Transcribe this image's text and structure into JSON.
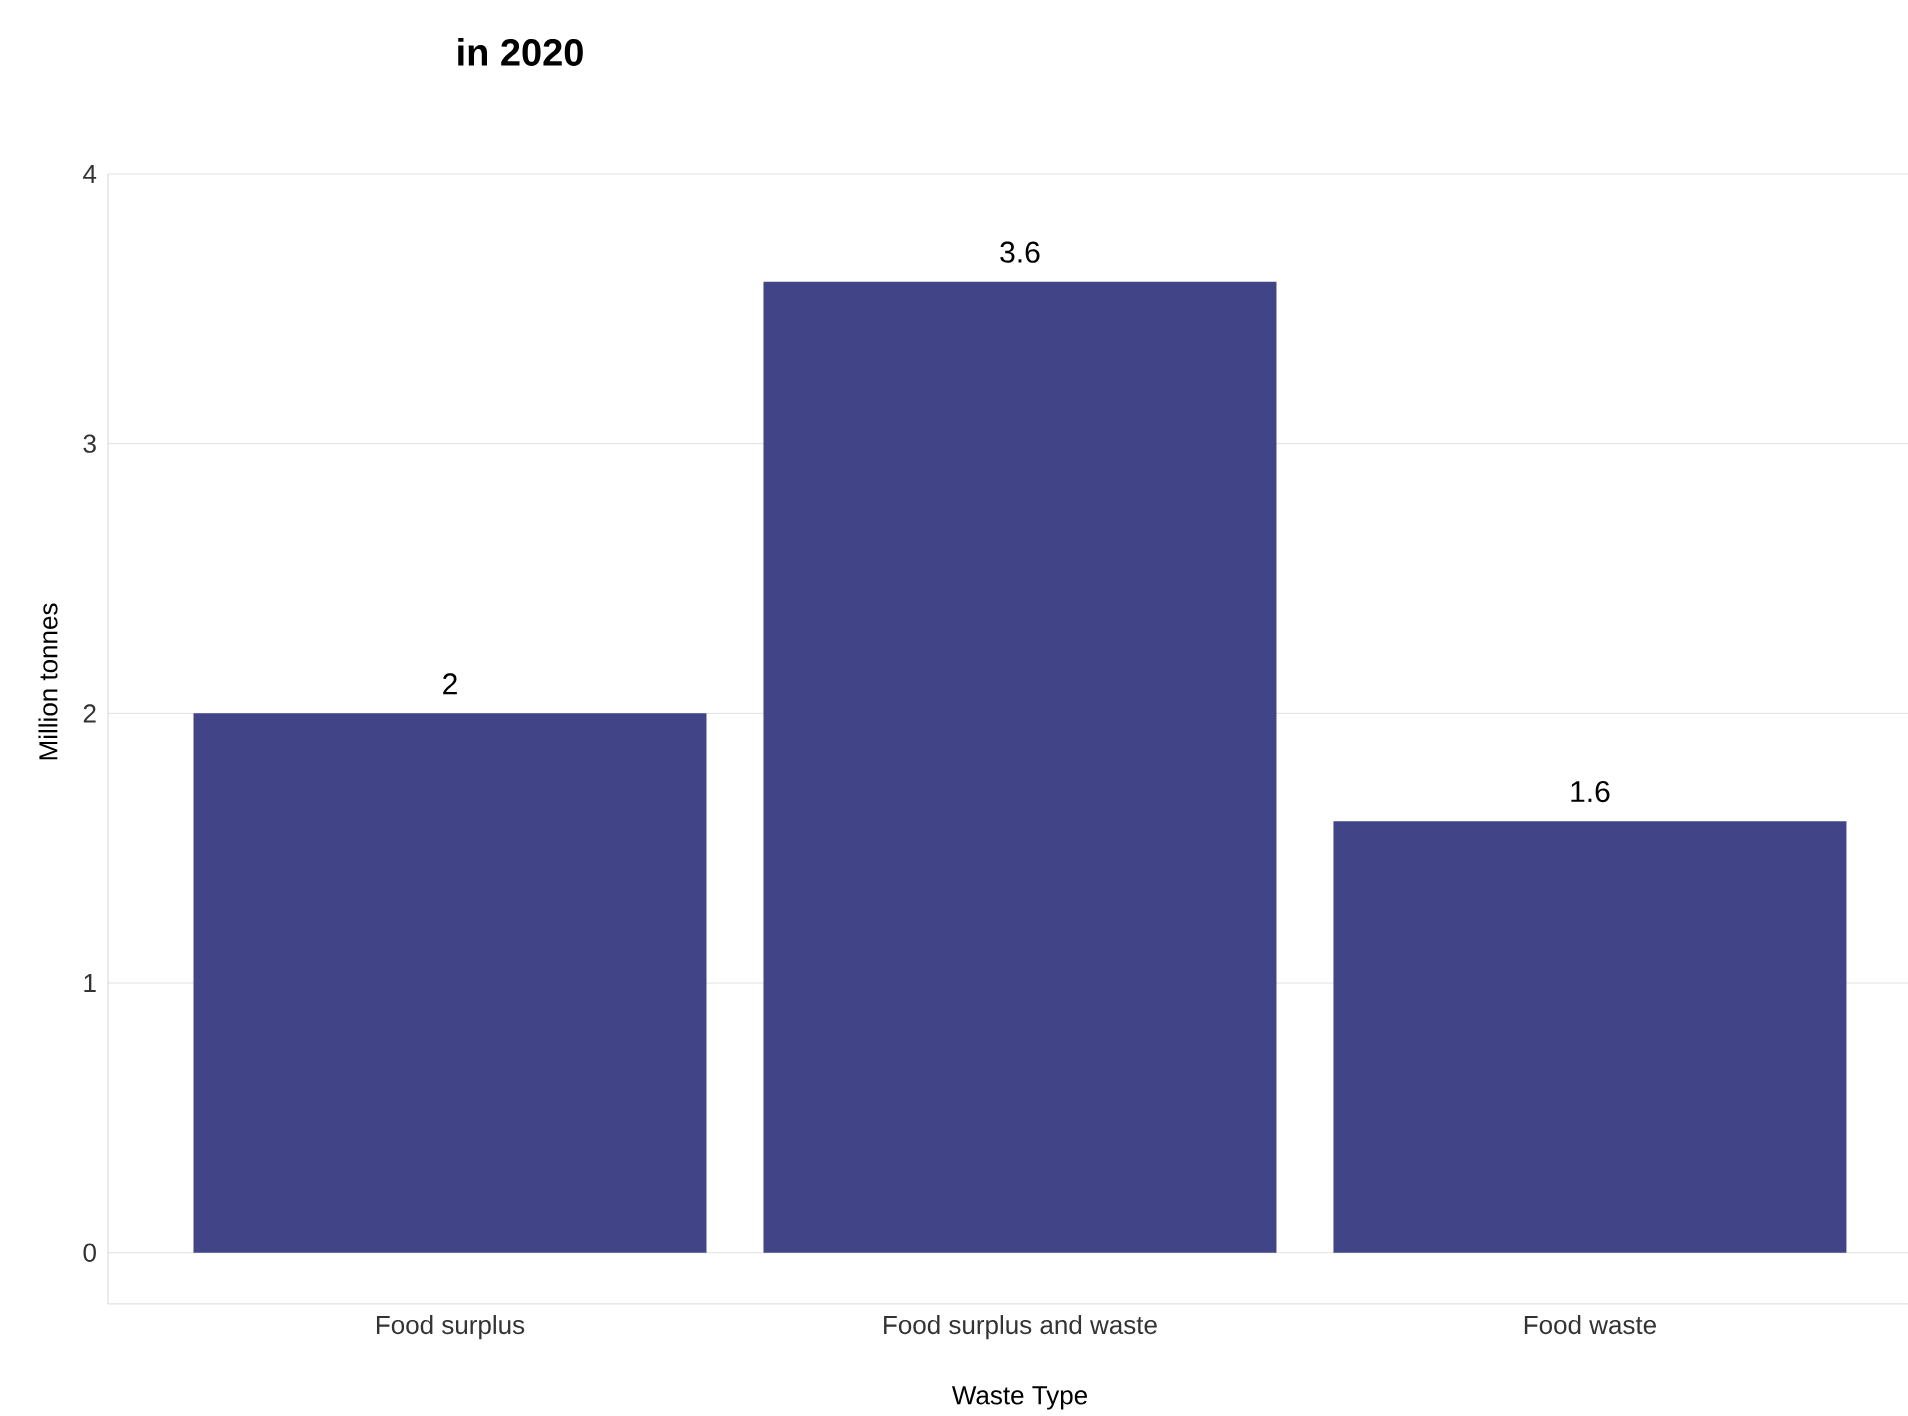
{
  "chart_data": {
    "type": "bar",
    "title": "in 2020",
    "xlabel": "Waste Type",
    "ylabel": "Million tonnes",
    "categories": [
      "Food surplus",
      "Food surplus and waste",
      "Food waste"
    ],
    "values": [
      2,
      3.6,
      1.6
    ],
    "color": "#414487",
    "ylim": [
      -0.19,
      4
    ],
    "yticks": [
      0,
      1,
      2,
      3,
      4
    ],
    "grid": "y",
    "data_labels": true
  }
}
